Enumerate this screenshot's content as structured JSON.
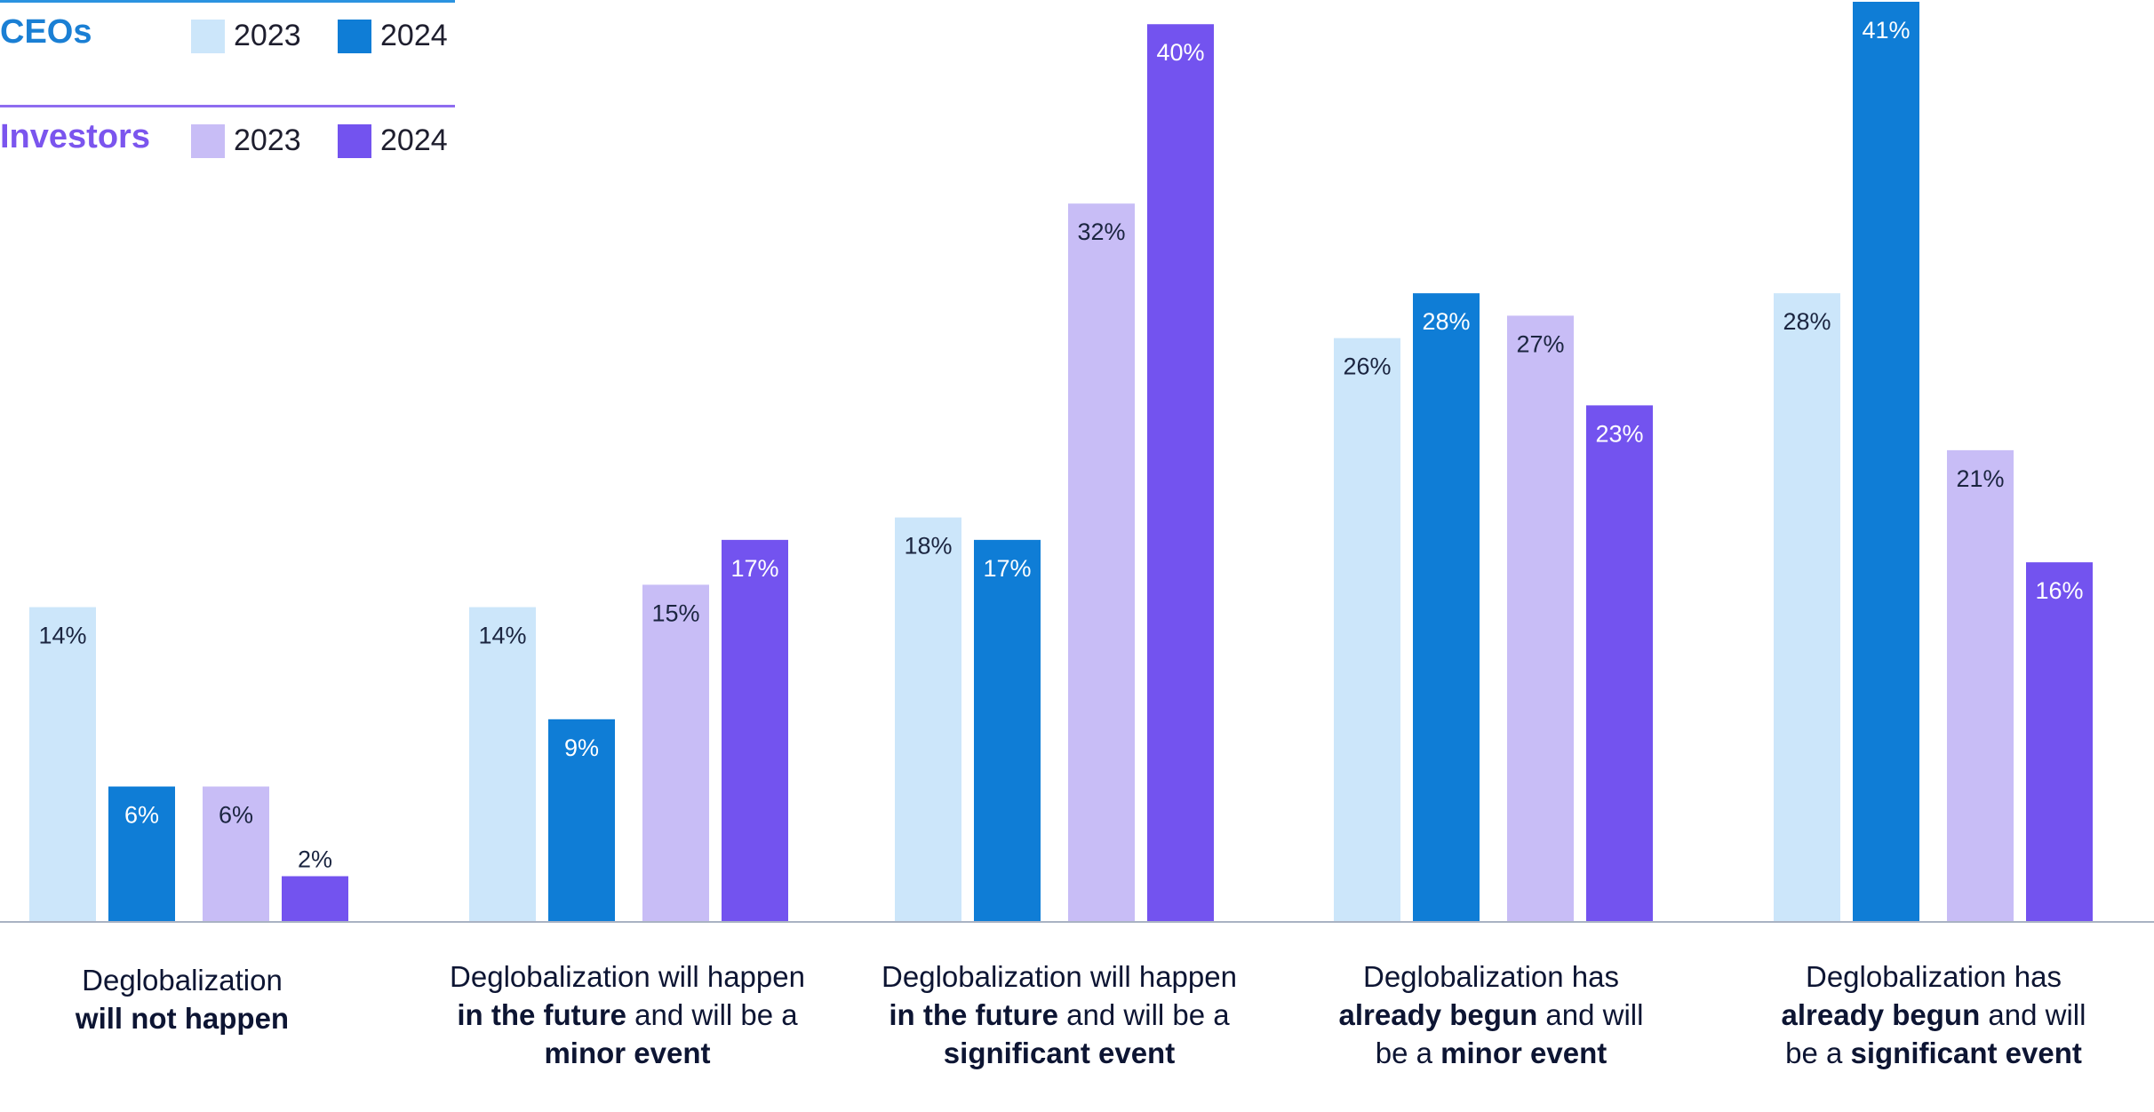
{
  "legend": {
    "ceos": {
      "title": "CEOs",
      "years": [
        "2023",
        "2024"
      ],
      "colors": [
        "#cce6fa",
        "#0f7dd6"
      ]
    },
    "investors": {
      "title": "Investors",
      "years": [
        "2023",
        "2024"
      ],
      "colors": [
        "#c8bdf6",
        "#7353ef"
      ]
    }
  },
  "chart_data": {
    "type": "bar",
    "title": "",
    "xlabel": "",
    "ylabel": "",
    "ylim": [
      0,
      41
    ],
    "unit": "%",
    "grid": false,
    "legend_position": "top-left",
    "categories": [
      {
        "parts": [
          {
            "text": "Deglobalization",
            "bold": false
          },
          {
            "text": "\n",
            "bold": false
          },
          {
            "text": "will not happen",
            "bold": true
          }
        ]
      },
      {
        "parts": [
          {
            "text": "Deglobalization will happen",
            "bold": false
          },
          {
            "text": "\n",
            "bold": false
          },
          {
            "text": "in the future",
            "bold": true
          },
          {
            "text": " and will be a",
            "bold": false
          },
          {
            "text": "\n",
            "bold": false
          },
          {
            "text": "minor event",
            "bold": true
          }
        ]
      },
      {
        "parts": [
          {
            "text": "Deglobalization will happen",
            "bold": false
          },
          {
            "text": "\n",
            "bold": false
          },
          {
            "text": "in the future",
            "bold": true
          },
          {
            "text": " and will be a",
            "bold": false
          },
          {
            "text": "\n",
            "bold": false
          },
          {
            "text": "significant event",
            "bold": true
          }
        ]
      },
      {
        "parts": [
          {
            "text": "Deglobalization has",
            "bold": false
          },
          {
            "text": "\n",
            "bold": false
          },
          {
            "text": "already begun",
            "bold": true
          },
          {
            "text": " and will",
            "bold": false
          },
          {
            "text": "\n",
            "bold": false
          },
          {
            "text": "be a ",
            "bold": false
          },
          {
            "text": "minor event",
            "bold": true
          }
        ]
      },
      {
        "parts": [
          {
            "text": "Deglobalization has",
            "bold": false
          },
          {
            "text": "\n",
            "bold": false
          },
          {
            "text": "already begun",
            "bold": true
          },
          {
            "text": " and will",
            "bold": false
          },
          {
            "text": "\n",
            "bold": false
          },
          {
            "text": "be a ",
            "bold": false
          },
          {
            "text": "significant event",
            "bold": true
          }
        ]
      }
    ],
    "series": [
      {
        "group": "CEOs",
        "year": "2023",
        "color": "#cce6fa",
        "label_color": "#1b2540",
        "values": [
          14,
          14,
          18,
          26,
          28
        ]
      },
      {
        "group": "CEOs",
        "year": "2024",
        "color": "#0f7dd6",
        "label_color": "#ffffff",
        "values": [
          6,
          9,
          17,
          28,
          41
        ]
      },
      {
        "group": "Investors",
        "year": "2023",
        "color": "#c8bdf6",
        "label_color": "#1b2540",
        "values": [
          6,
          15,
          32,
          27,
          21
        ]
      },
      {
        "group": "Investors",
        "year": "2024",
        "color": "#7353ef",
        "label_color": "#ffffff",
        "values": [
          2,
          17,
          40,
          23,
          16
        ]
      }
    ]
  }
}
